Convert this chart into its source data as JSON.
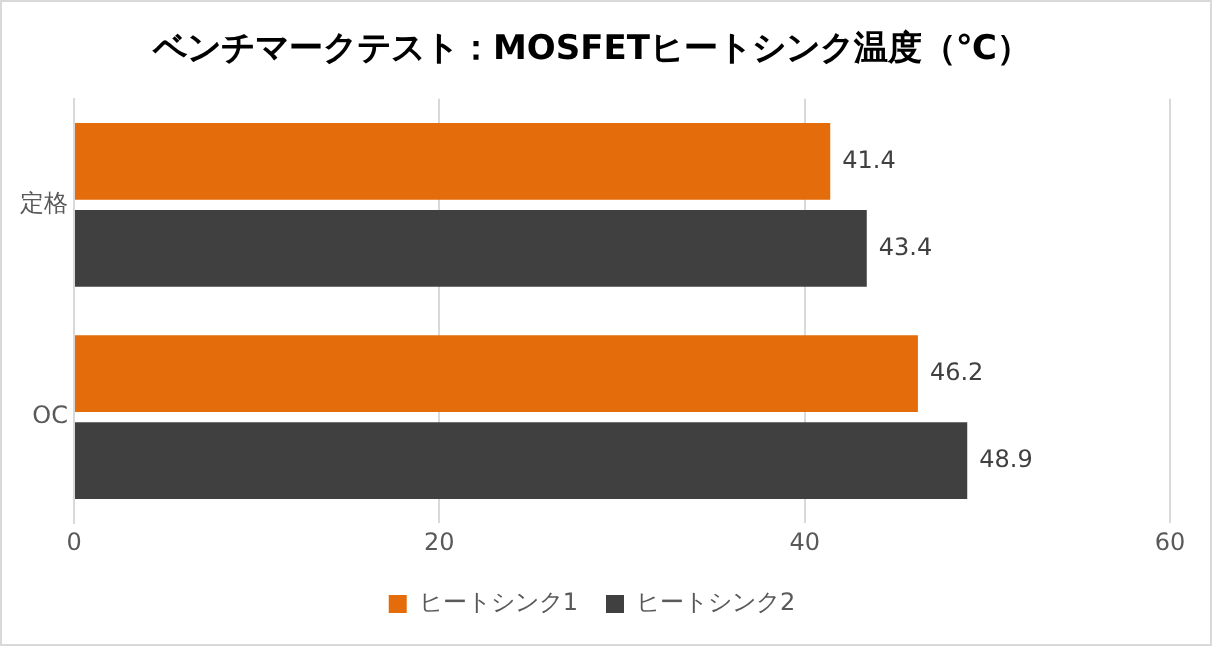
{
  "chart_data": {
    "type": "bar",
    "orientation": "horizontal",
    "title": "ベンチマークテスト：MOSFETヒートシンク温度（℃）",
    "categories": [
      "定格",
      "OC"
    ],
    "series": [
      {
        "name": "ヒートシンク1",
        "color": "#e46c0a",
        "values": [
          41.4,
          46.2
        ]
      },
      {
        "name": "ヒートシンク2",
        "color": "#404040",
        "values": [
          43.4,
          48.9
        ]
      }
    ],
    "xlim": [
      0,
      60
    ],
    "xticks": [
      0,
      20,
      40,
      60
    ],
    "grid": "x",
    "legend": "bottom",
    "data_labels": true
  }
}
